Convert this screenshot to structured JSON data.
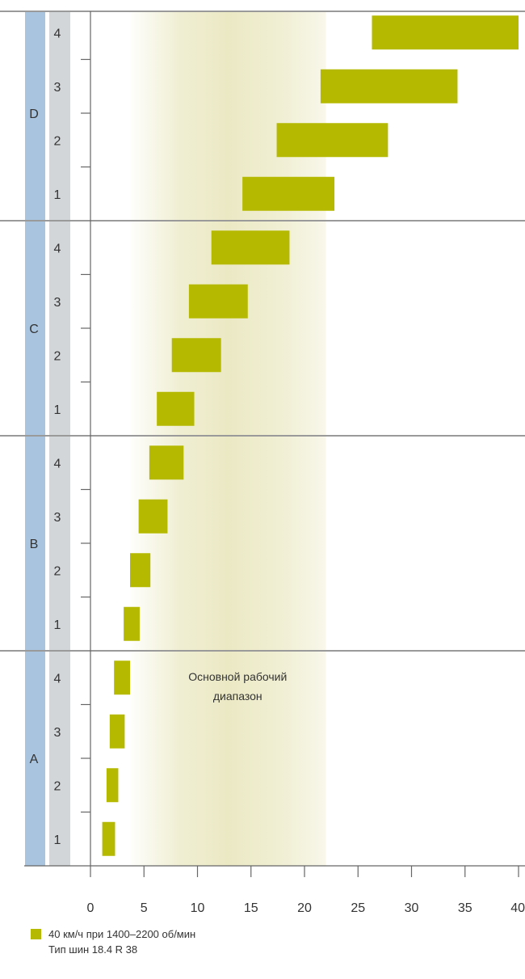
{
  "chart_data": {
    "type": "bar",
    "orientation": "horizontal-range",
    "x_ticks": [
      0,
      5,
      10,
      15,
      20,
      25,
      30,
      35,
      40
    ],
    "xlim": [
      0,
      40
    ],
    "grid": false,
    "band": {
      "label": "Основной рабочий диапазон",
      "from": 3.7,
      "to": 22
    },
    "ranges": [
      {
        "name": "A",
        "gears": [
          {
            "gear": "1",
            "from": 1.1,
            "to": 2.3
          },
          {
            "gear": "2",
            "from": 1.5,
            "to": 2.6
          },
          {
            "gear": "3",
            "from": 1.8,
            "to": 3.2
          },
          {
            "gear": "4",
            "from": 2.2,
            "to": 3.7
          }
        ]
      },
      {
        "name": "B",
        "gears": [
          {
            "gear": "1",
            "from": 3.1,
            "to": 4.6
          },
          {
            "gear": "2",
            "from": 3.7,
            "to": 5.6
          },
          {
            "gear": "3",
            "from": 4.5,
            "to": 7.2
          },
          {
            "gear": "4",
            "from": 5.5,
            "to": 8.7
          }
        ]
      },
      {
        "name": "C",
        "gears": [
          {
            "gear": "1",
            "from": 6.2,
            "to": 9.7
          },
          {
            "gear": "2",
            "from": 7.6,
            "to": 12.2
          },
          {
            "gear": "3",
            "from": 9.2,
            "to": 14.7
          },
          {
            "gear": "4",
            "from": 11.3,
            "to": 18.6
          }
        ]
      },
      {
        "name": "D",
        "gears": [
          {
            "gear": "1",
            "from": 14.2,
            "to": 22.8
          },
          {
            "gear": "2",
            "from": 17.4,
            "to": 27.8
          },
          {
            "gear": "3",
            "from": 21.5,
            "to": 34.3
          },
          {
            "gear": "4",
            "from": 26.3,
            "to": 40
          }
        ]
      }
    ],
    "legend": {
      "label": "40 км/ч при 1400–2200 об/мин",
      "note": "Тип шин 18.4 R 38"
    },
    "colors": {
      "bar": "#b5ba00",
      "band": "#ebe9c4",
      "range_column": "#a8c4df",
      "gear_column": "#d3d6d9",
      "axis": "#666666",
      "separator": "#9a9a9a"
    }
  }
}
